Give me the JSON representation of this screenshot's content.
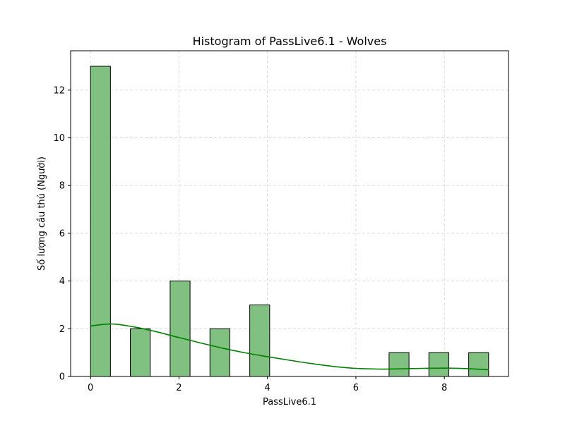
{
  "chart_data": {
    "type": "bar",
    "title": "Histogram of PassLive6.1 - Wolves",
    "xlabel": "PassLive6.1",
    "ylabel": "Số lượng cầu thủ (Người)",
    "xlim": [
      -0.45,
      9.45
    ],
    "ylim": [
      0,
      13.65
    ],
    "xticks": [
      0,
      2,
      4,
      6,
      8
    ],
    "yticks": [
      0,
      2,
      4,
      6,
      8,
      10,
      12
    ],
    "grid": true,
    "bin_width": 0.45,
    "bins": [
      {
        "start": 0.0,
        "count": 13
      },
      {
        "start": 0.45,
        "count": 0
      },
      {
        "start": 0.9,
        "count": 2
      },
      {
        "start": 1.35,
        "count": 0
      },
      {
        "start": 1.8,
        "count": 4
      },
      {
        "start": 2.25,
        "count": 0
      },
      {
        "start": 2.7,
        "count": 2
      },
      {
        "start": 3.15,
        "count": 0
      },
      {
        "start": 3.6,
        "count": 3
      },
      {
        "start": 4.05,
        "count": 0
      },
      {
        "start": 4.5,
        "count": 0
      },
      {
        "start": 4.95,
        "count": 0
      },
      {
        "start": 5.4,
        "count": 0
      },
      {
        "start": 5.85,
        "count": 0
      },
      {
        "start": 6.3,
        "count": 0
      },
      {
        "start": 6.75,
        "count": 1
      },
      {
        "start": 7.2,
        "count": 0
      },
      {
        "start": 7.65,
        "count": 1
      },
      {
        "start": 8.1,
        "count": 0
      },
      {
        "start": 8.55,
        "count": 1
      }
    ],
    "bar_color": "#80c080",
    "bar_edge_color": "#000000",
    "kde": {
      "color": "#008000",
      "x": [
        0,
        0.5,
        1,
        1.5,
        2,
        2.5,
        3,
        3.5,
        4,
        4.5,
        5,
        5.5,
        6,
        6.5,
        7,
        7.5,
        8,
        8.5,
        9
      ],
      "y": [
        2.12,
        2.2,
        2.07,
        1.87,
        1.63,
        1.4,
        1.18,
        0.99,
        0.83,
        0.68,
        0.54,
        0.42,
        0.34,
        0.31,
        0.32,
        0.34,
        0.35,
        0.33,
        0.28
      ]
    }
  }
}
